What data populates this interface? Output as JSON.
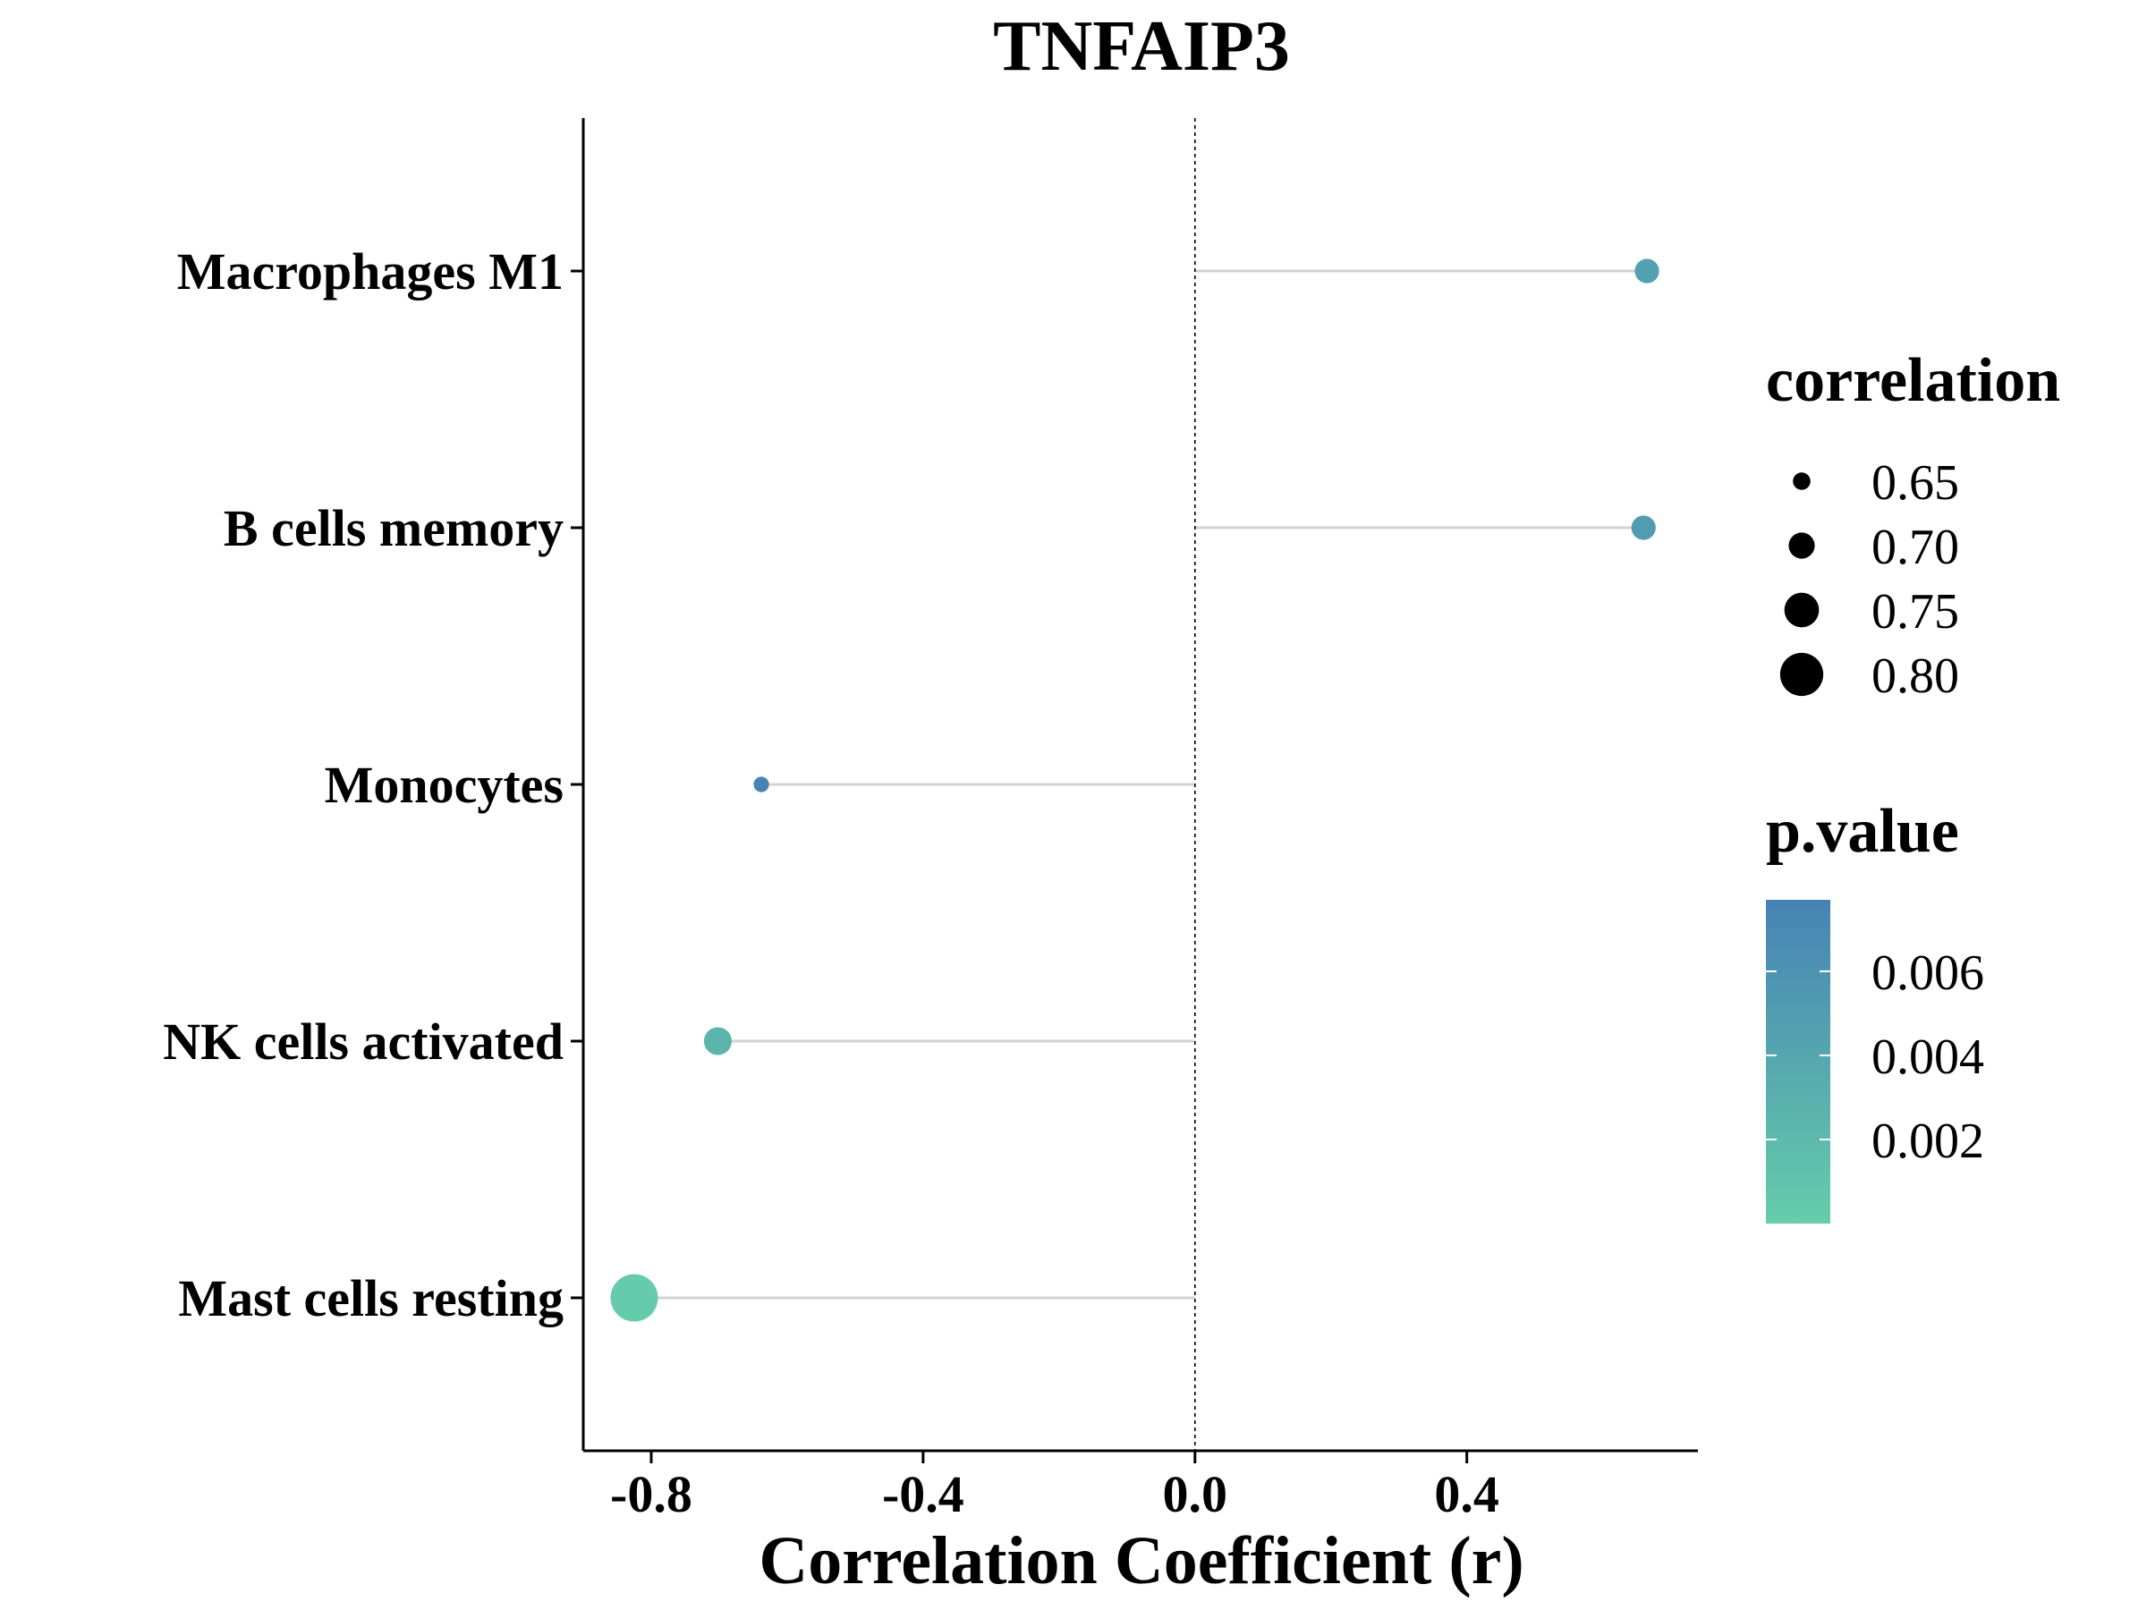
{
  "chart_data": {
    "type": "lollipop",
    "title": "TNFAIP3",
    "xlabel": "Correlation Coefficient (r)",
    "ylabel": "",
    "xlim": [
      -0.9,
      0.74
    ],
    "x_ticks": [
      -0.8,
      -0.4,
      0.0,
      0.4
    ],
    "x_tick_labels": [
      "-0.8",
      "-0.4",
      "0.0",
      "0.4"
    ],
    "reference_line": 0,
    "categories": [
      "Macrophages M1",
      "B cells memory",
      "Monocytes",
      "NK cells activated",
      "Mast cells resting"
    ],
    "points": [
      {
        "category": "Macrophages M1",
        "r": 0.665,
        "correlation": 0.69,
        "p_value": 0.0045
      },
      {
        "category": "B cells memory",
        "r": 0.66,
        "correlation": 0.69,
        "p_value": 0.005
      },
      {
        "category": "Monocytes",
        "r": -0.638,
        "correlation": 0.638,
        "p_value": 0.0075
      },
      {
        "category": "NK cells activated",
        "r": -0.702,
        "correlation": 0.71,
        "p_value": 0.0025
      },
      {
        "category": "Mast cells resting",
        "r": -0.825,
        "correlation": 0.825,
        "p_value": 0.0002
      }
    ],
    "legend_size": {
      "title": "correlation",
      "values": [
        0.65,
        0.7,
        0.75,
        0.8
      ],
      "labels": [
        "0.65",
        "0.70",
        "0.75",
        "0.80"
      ]
    },
    "legend_color": {
      "title": "p.value",
      "range": [
        0.0,
        0.0077
      ],
      "ticks": [
        0.006,
        0.004,
        0.002
      ],
      "labels": [
        "0.006",
        "0.004",
        "0.002"
      ],
      "color_low": "#66CDAA",
      "color_high": "#4682B4"
    },
    "colors": {
      "stem": "#d3d3d3",
      "axis": "#000000",
      "reference_line": "#000000"
    },
    "grid": false,
    "legend_position": "right"
  }
}
